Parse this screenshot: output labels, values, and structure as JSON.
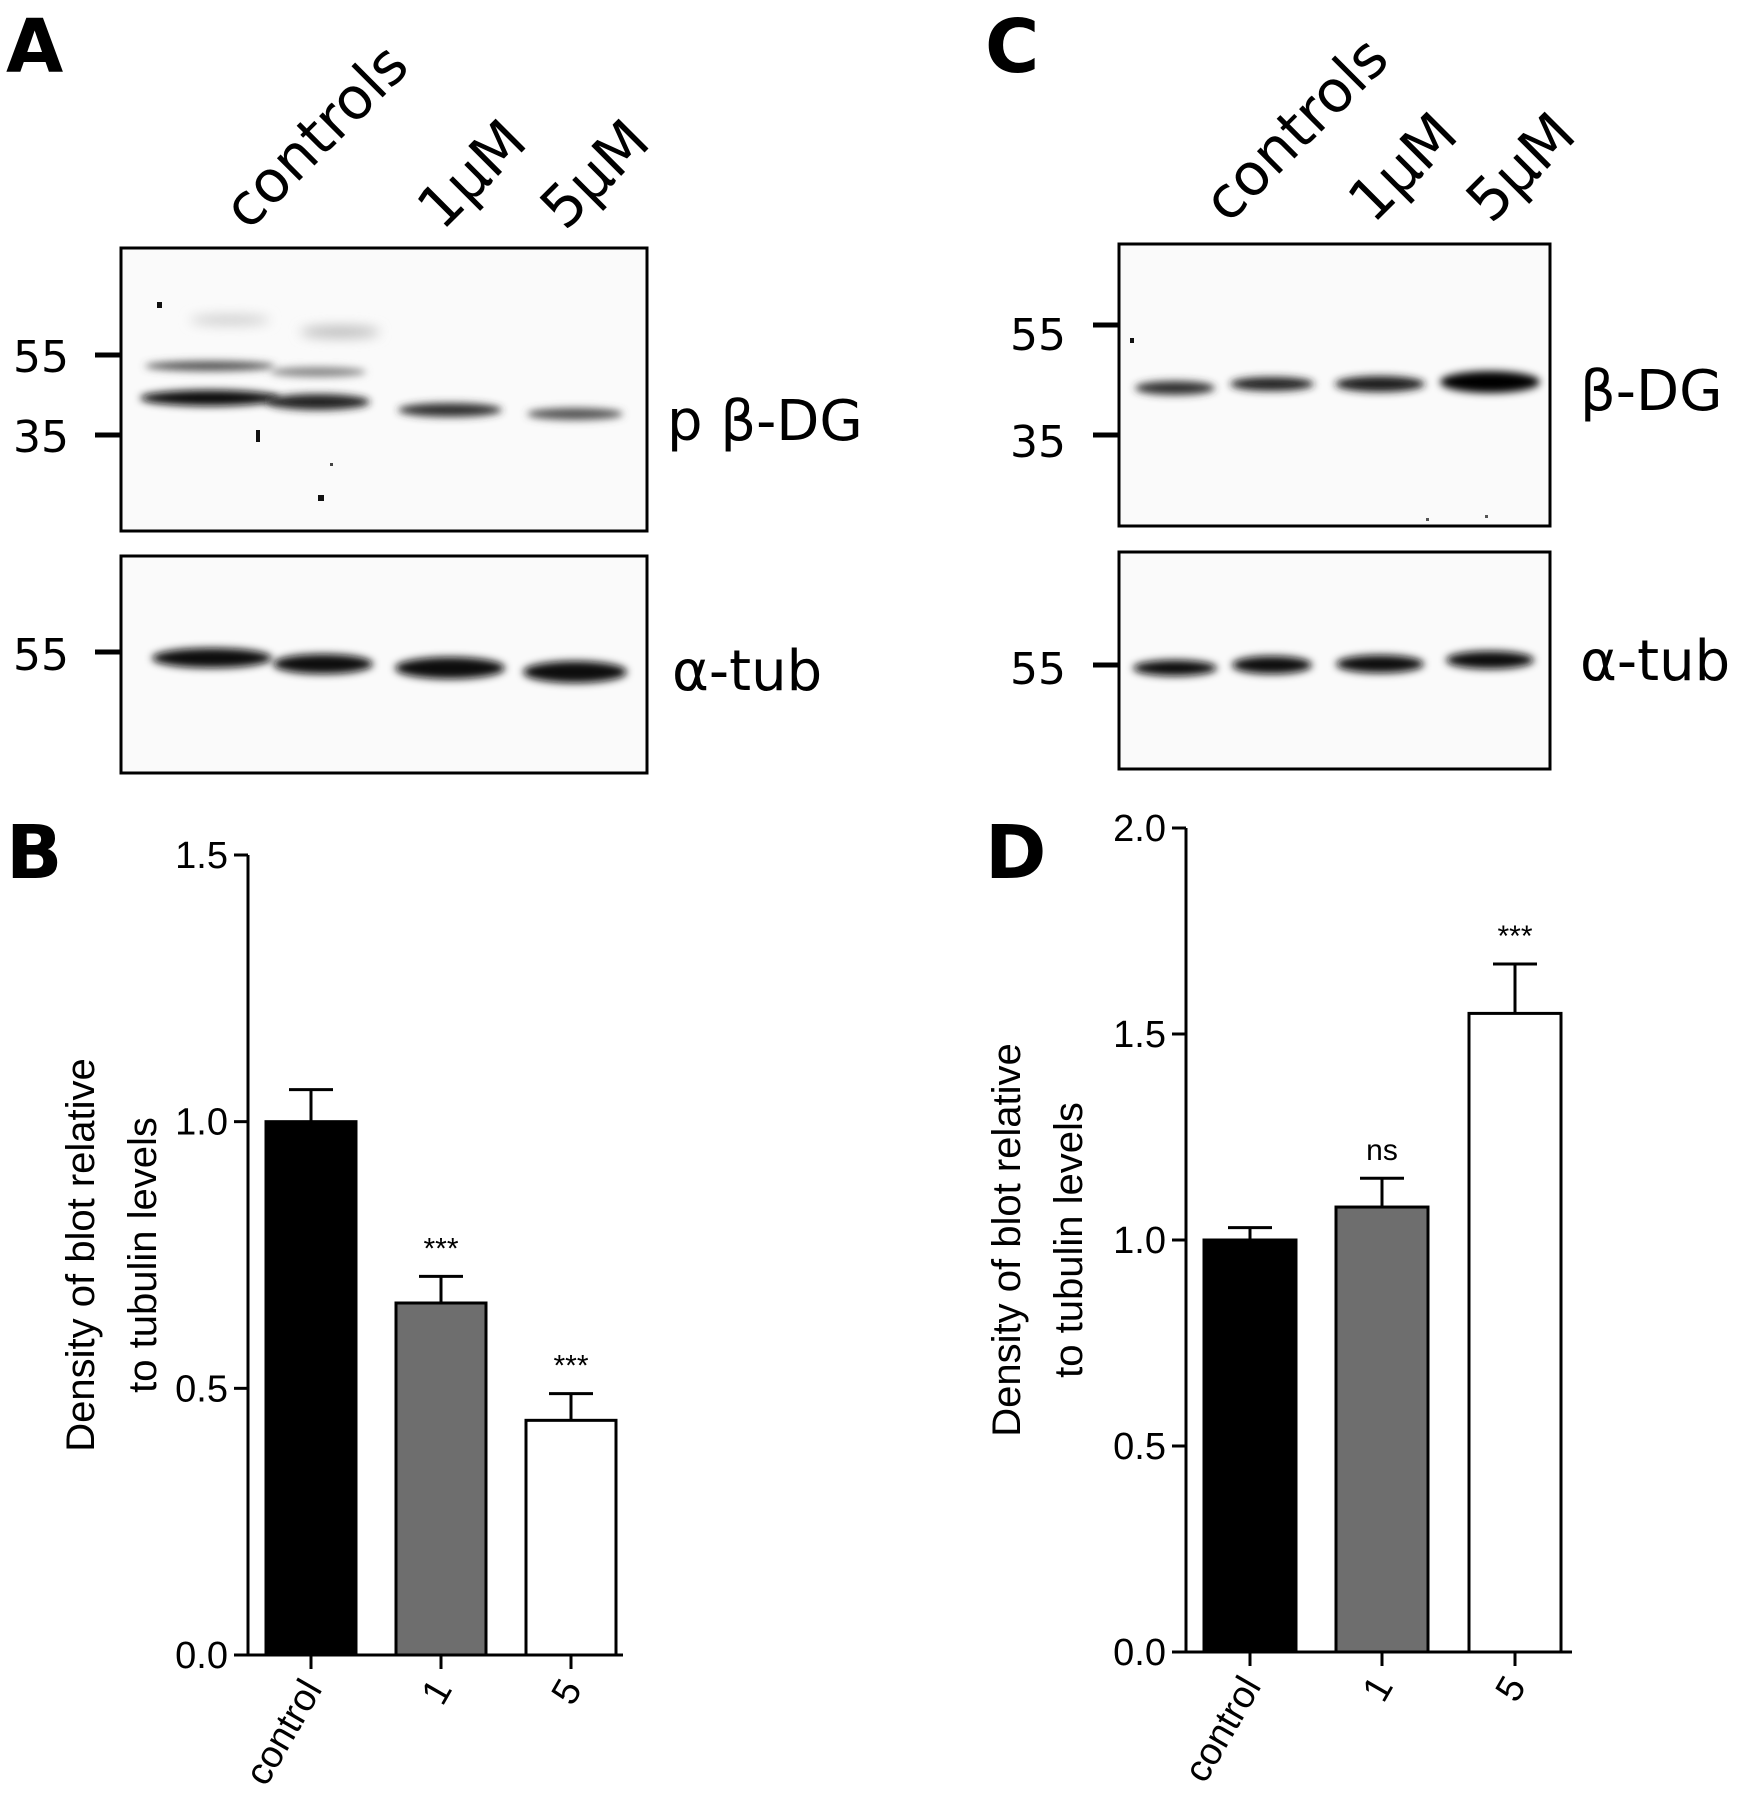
{
  "panels": {
    "a": {
      "letter": "A",
      "lanes": [
        "controls",
        "1μM",
        "5μM"
      ],
      "blots": [
        {
          "label": "p β-DG",
          "markers": [
            "55",
            "35"
          ]
        },
        {
          "label": "α-tub",
          "markers": [
            "55"
          ]
        }
      ]
    },
    "c": {
      "letter": "C",
      "lanes": [
        "controls",
        "1μM",
        "5μM"
      ],
      "blots": [
        {
          "label": "β-DG",
          "markers": [
            "55",
            "35"
          ]
        },
        {
          "label": "α-tub",
          "markers": [
            "55"
          ]
        }
      ]
    }
  },
  "chart_data": [
    {
      "panel": "B",
      "type": "bar",
      "categories": [
        "control",
        "1",
        "5"
      ],
      "values": [
        1.0,
        0.66,
        0.44
      ],
      "errors": [
        0.06,
        0.05,
        0.05
      ],
      "annotations": [
        "",
        "***",
        "***"
      ],
      "colors": [
        "#000000",
        "#6e6e6e",
        "#ffffff"
      ],
      "ylabel_line1": "Density of blot relative",
      "ylabel_line2": "to tubulin levels",
      "ylim": [
        0,
        1.5
      ],
      "yticks": [
        "0.0",
        "0.5",
        "1.0",
        "1.5"
      ]
    },
    {
      "panel": "D",
      "type": "bar",
      "categories": [
        "control",
        "1",
        "5"
      ],
      "values": [
        1.0,
        1.08,
        1.55
      ],
      "errors": [
        0.03,
        0.07,
        0.12
      ],
      "annotations": [
        "",
        "ns",
        "***"
      ],
      "colors": [
        "#000000",
        "#6e6e6e",
        "#ffffff"
      ],
      "ylabel_line1": "Density of blot relative",
      "ylabel_line2": "to tubulin levels",
      "ylim": [
        0,
        2.0
      ],
      "yticks": [
        "0.0",
        "0.5",
        "1.0",
        "1.5",
        "2.0"
      ]
    }
  ]
}
